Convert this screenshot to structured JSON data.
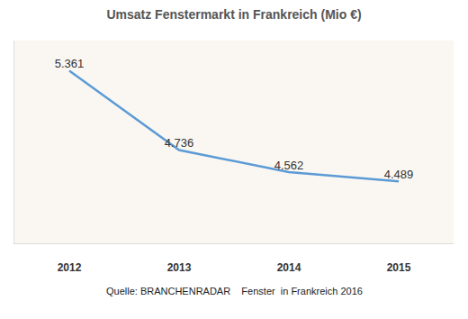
{
  "chart_data": {
    "type": "line",
    "title": "Umsatz Fenstermarkt in Frankreich (Mio €)",
    "categories": [
      "2012",
      "2013",
      "2014",
      "2015"
    ],
    "values": [
      5361,
      4736,
      4562,
      4489
    ],
    "value_labels": [
      "5.361",
      "4.736",
      "4.562",
      "4.489"
    ],
    "color": "#5b9bd5",
    "ylim": [
      4000,
      5600
    ],
    "tick_labels": "x",
    "grid": false,
    "data_labels": true,
    "marker": "none",
    "annotations": [
      "Quelle: BRANCHENRADAR    Fenster  in Frankreich 2016"
    ]
  }
}
